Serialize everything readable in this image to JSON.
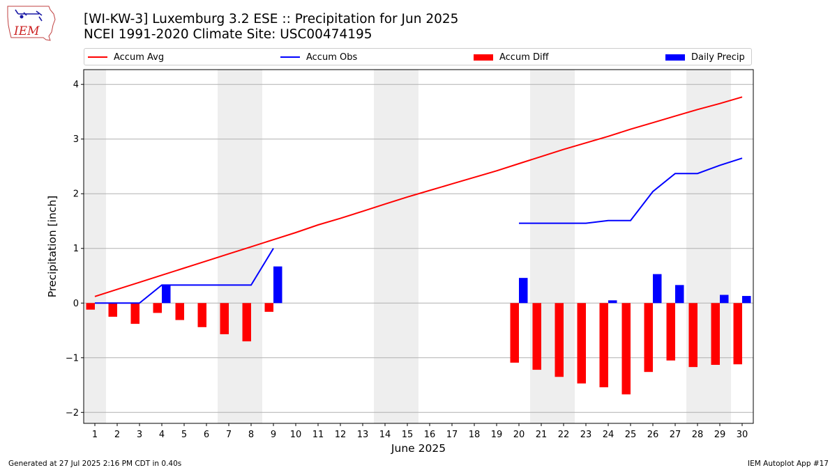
{
  "header": {
    "title_line1": "[WI-KW-3] Luxemburg 3.2 ESE :: Precipitation for Jun 2025",
    "title_line2": "NCEI 1991-2020 Climate Site: USC00474195"
  },
  "logo": {
    "text": "IEM",
    "icon": "iowa-state-outline-logo"
  },
  "footer": {
    "left": "Generated at 27 Jul 2025 2:16 PM CDT in 0.40s",
    "right": "IEM Autoplot App #17"
  },
  "chart_data": {
    "type": "bar",
    "title": "[WI-KW-3] Luxemburg 3.2 ESE :: Precipitation for Jun 2025",
    "subtitle": "NCEI 1991-2020 Climate Site: USC00474195",
    "xlabel": "June 2025",
    "ylabel": "Precipitation [inch]",
    "x": [
      1,
      2,
      3,
      4,
      5,
      6,
      7,
      8,
      9,
      10,
      11,
      12,
      13,
      14,
      15,
      16,
      17,
      18,
      19,
      20,
      21,
      22,
      23,
      24,
      25,
      26,
      27,
      28,
      29,
      30
    ],
    "xlim": [
      0.5,
      30.5
    ],
    "ylim": [
      -2.2,
      4.27
    ],
    "yticks": [
      -2,
      -1,
      0,
      1,
      2,
      3,
      4
    ],
    "grid": "horizontal",
    "legend_position": "top",
    "weekend_shading": [
      [
        0.5,
        1.5
      ],
      [
        6.5,
        8.5
      ],
      [
        13.5,
        15.5
      ],
      [
        20.5,
        22.5
      ],
      [
        27.5,
        29.5
      ]
    ],
    "colors": {
      "accum_avg": "#ff0000",
      "accum_obs": "#0000ff",
      "accum_diff": "#ff0000",
      "daily_precip": "#0000ff",
      "shade": "#eeeeee"
    },
    "series": [
      {
        "name": "Accum Avg",
        "kind": "line",
        "values": [
          0.12,
          0.25,
          0.38,
          0.51,
          0.64,
          0.77,
          0.9,
          1.03,
          1.16,
          1.29,
          1.43,
          1.55,
          1.68,
          1.81,
          1.94,
          2.06,
          2.18,
          2.3,
          2.42,
          2.55,
          2.68,
          2.81,
          2.93,
          3.05,
          3.18,
          3.3,
          3.42,
          3.54,
          3.65,
          3.77
        ]
      },
      {
        "name": "Accum Obs",
        "kind": "line",
        "values": [
          0,
          0,
          0,
          0.33,
          0.33,
          0.33,
          0.33,
          0.33,
          1.0,
          null,
          null,
          null,
          null,
          null,
          null,
          null,
          null,
          null,
          null,
          1.46,
          1.46,
          1.46,
          1.46,
          1.51,
          1.51,
          2.04,
          2.37,
          2.37,
          2.52,
          2.65
        ]
      },
      {
        "name": "Accum Diff",
        "kind": "bar",
        "values": [
          -0.12,
          -0.25,
          -0.38,
          -0.18,
          -0.31,
          -0.44,
          -0.57,
          -0.7,
          -0.16,
          null,
          null,
          null,
          null,
          null,
          null,
          null,
          null,
          null,
          null,
          -1.09,
          -1.22,
          -1.35,
          -1.47,
          -1.54,
          -1.67,
          -1.26,
          -1.05,
          -1.17,
          -1.13,
          -1.12
        ]
      },
      {
        "name": "Daily Precip",
        "kind": "bar",
        "values": [
          0,
          0,
          0,
          0.33,
          0,
          0,
          0,
          0,
          0.67,
          null,
          null,
          null,
          null,
          null,
          null,
          null,
          null,
          null,
          null,
          0.46,
          0,
          0,
          0,
          0.05,
          0,
          0.53,
          0.33,
          0,
          0.15,
          0.13
        ]
      }
    ]
  }
}
